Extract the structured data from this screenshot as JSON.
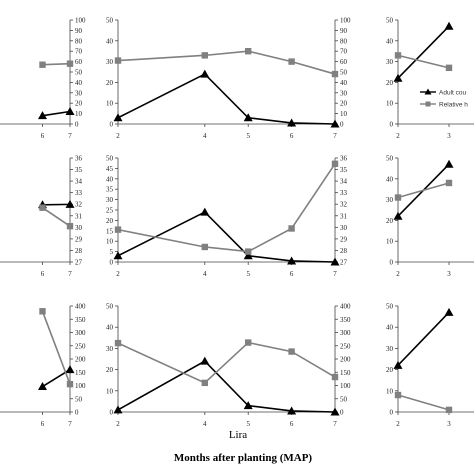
{
  "figure": {
    "xlabel": "Months after planting (MAP)",
    "site_label": "Lira"
  },
  "legend": {
    "series": [
      "Adult cou",
      "Relative h"
    ]
  },
  "colors": {
    "adult": "#000000",
    "humidity": "#808080"
  },
  "chart_data": [
    {
      "type": "line",
      "x": [
        6,
        7
      ],
      "series": [
        {
          "values": [
            4,
            6
          ]
        },
        {
          "values": [
            57,
            58
          ]
        }
      ],
      "yright_lim": [
        0,
        100
      ],
      "yright_ticks": [
        0,
        10,
        20,
        30,
        40,
        50,
        60,
        70,
        80,
        90,
        100
      ],
      "x_ticks": [
        6,
        7
      ]
    },
    {
      "type": "line",
      "x": [
        2,
        4,
        5,
        6,
        7
      ],
      "series": [
        {
          "values": [
            3,
            24,
            3,
            0.5,
            0
          ]
        },
        {
          "values": [
            61,
            66,
            70,
            60,
            48
          ]
        }
      ],
      "yleft_lim": [
        0,
        50
      ],
      "yleft_ticks": [
        0,
        10,
        20,
        30,
        40,
        50
      ],
      "yright_lim": [
        0,
        100
      ],
      "yright_ticks": [
        0,
        10,
        20,
        30,
        40,
        50,
        60,
        70,
        80,
        90,
        100
      ],
      "x_ticks": [
        2,
        4,
        5,
        6,
        7
      ]
    },
    {
      "type": "line",
      "x": [
        2,
        3
      ],
      "series": [
        {
          "name": "Adult cou",
          "values": [
            22,
            47
          ]
        },
        {
          "name": "Relative h",
          "values": [
            33,
            27
          ]
        }
      ],
      "yleft_lim": [
        0,
        50
      ],
      "yleft_ticks": [
        0,
        10,
        20,
        30,
        40,
        50
      ],
      "x_ticks": [
        2,
        3
      ],
      "legend": "inside"
    },
    {
      "type": "line",
      "x": [
        6,
        7
      ],
      "series": [
        {
          "values": [
            27.5,
            27.7
          ]
        },
        {
          "values": [
            31.7,
            30.1
          ]
        }
      ],
      "yright_lim": [
        27,
        36
      ],
      "yright_ticks": [
        27,
        28,
        29,
        30,
        31,
        32,
        33,
        34,
        35,
        36
      ],
      "x_ticks": [
        6,
        7
      ]
    },
    {
      "type": "line",
      "x": [
        2,
        4,
        5,
        6,
        7
      ],
      "series": [
        {
          "values": [
            3,
            24,
            3,
            0.5,
            0
          ]
        },
        {
          "values": [
            29.8,
            28.3,
            27.9,
            29.9,
            35.5
          ]
        }
      ],
      "yleft_lim": [
        0,
        50
      ],
      "yleft_ticks": [
        0,
        5,
        10,
        15,
        20,
        25,
        30,
        35,
        40,
        45,
        50
      ],
      "yright_lim": [
        27,
        36
      ],
      "yright_ticks": [
        27,
        28,
        29,
        30,
        31,
        32,
        33,
        34,
        35,
        36
      ],
      "x_ticks": [
        2,
        4,
        5,
        6,
        7
      ]
    },
    {
      "type": "line",
      "x": [
        2,
        3
      ],
      "series": [
        {
          "values": [
            22,
            47
          ]
        },
        {
          "values": [
            31,
            38
          ]
        }
      ],
      "yleft_lim": [
        0,
        50
      ],
      "yleft_ticks": [
        0,
        10,
        20,
        30,
        40,
        50
      ],
      "x_ticks": [
        2,
        3
      ]
    },
    {
      "type": "line",
      "x": [
        6,
        7
      ],
      "series": [
        {
          "values": [
            12,
            20
          ]
        },
        {
          "values": [
            380,
            105
          ]
        }
      ],
      "yright_lim": [
        0,
        400
      ],
      "yright_ticks": [
        0,
        50,
        100,
        150,
        200,
        250,
        300,
        350,
        400
      ],
      "x_ticks": [
        6,
        7
      ]
    },
    {
      "type": "line",
      "x": [
        2,
        4,
        5,
        6,
        7
      ],
      "series": [
        {
          "values": [
            1,
            24,
            3,
            0.5,
            0
          ]
        },
        {
          "values": [
            260,
            110,
            262,
            228,
            132
          ]
        }
      ],
      "yleft_lim": [
        0,
        50
      ],
      "yleft_ticks": [
        0,
        10,
        20,
        30,
        40,
        50
      ],
      "yright_lim": [
        0,
        400
      ],
      "yright_ticks": [
        0,
        50,
        100,
        150,
        200,
        250,
        300,
        350,
        400
      ],
      "x_ticks": [
        2,
        4,
        5,
        6,
        7
      ]
    },
    {
      "type": "line",
      "x": [
        2,
        3
      ],
      "series": [
        {
          "values": [
            22,
            47
          ]
        },
        {
          "values": [
            8,
            1
          ]
        }
      ],
      "yleft_lim": [
        0,
        50
      ],
      "yleft_ticks": [
        0,
        10,
        20,
        30,
        40,
        50
      ],
      "x_ticks": [
        2,
        3
      ]
    }
  ]
}
